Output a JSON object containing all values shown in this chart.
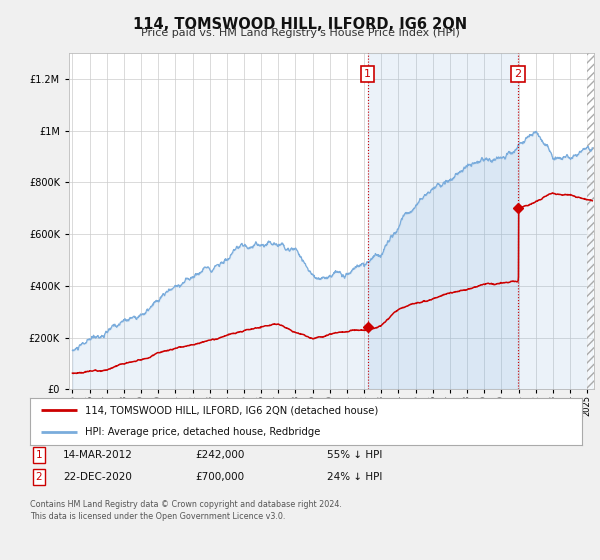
{
  "title": "114, TOMSWOOD HILL, ILFORD, IG6 2QN",
  "subtitle": "Price paid vs. HM Land Registry's House Price Index (HPI)",
  "legend_line1": "114, TOMSWOOD HILL, ILFORD, IG6 2QN (detached house)",
  "legend_line2": "HPI: Average price, detached house, Redbridge",
  "annotation1_date": "14-MAR-2012",
  "annotation1_price": "£242,000",
  "annotation1_hpi": "55% ↓ HPI",
  "annotation2_date": "22-DEC-2020",
  "annotation2_price": "£700,000",
  "annotation2_hpi": "24% ↓ HPI",
  "footer": "Contains HM Land Registry data © Crown copyright and database right 2024.\nThis data is licensed under the Open Government Licence v3.0.",
  "hpi_color": "#7aacdc",
  "hpi_fill_color": "#ddeeff",
  "price_color": "#cc0000",
  "background_color": "#f0f0f0",
  "plot_bg_color": "#ffffff",
  "grid_color": "#cccccc",
  "sale1_x": 2012.2,
  "sale1_y": 242000,
  "sale2_x": 2020.97,
  "sale2_y": 700000,
  "ylim": [
    0,
    1300000
  ],
  "xlim": [
    1994.8,
    2025.4
  ]
}
